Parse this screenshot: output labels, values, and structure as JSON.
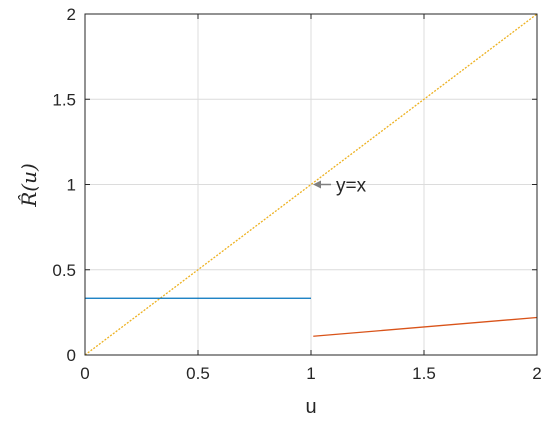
{
  "chart_data": {
    "type": "line",
    "title": "",
    "xlabel": "u",
    "ylabel": "R̂(u)",
    "xlim": [
      0,
      2
    ],
    "ylim": [
      0,
      2
    ],
    "grid": true,
    "xticks": [
      0,
      0.5,
      1,
      1.5,
      2
    ],
    "yticks": [
      0,
      0.5,
      1,
      1.5,
      2
    ],
    "xtick_labels": [
      "0",
      "0.5",
      "1",
      "1.5",
      "2"
    ],
    "ytick_labels": [
      "0",
      "0.5",
      "1",
      "1.5",
      "2"
    ],
    "series": [
      {
        "color": "#EDB120",
        "style": "dashed",
        "x": [
          0,
          2
        ],
        "y": [
          0,
          2
        ]
      },
      {
        "color": "#0072BD",
        "style": "solid",
        "x": [
          0,
          1
        ],
        "y": [
          0.333,
          0.333
        ]
      },
      {
        "color": "#D95319",
        "style": "solid",
        "x": [
          1.01,
          2
        ],
        "y": [
          0.11,
          0.22
        ]
      }
    ],
    "annotations": [
      {
        "text": "y=x",
        "arrow_to": [
          1,
          1
        ]
      }
    ]
  }
}
